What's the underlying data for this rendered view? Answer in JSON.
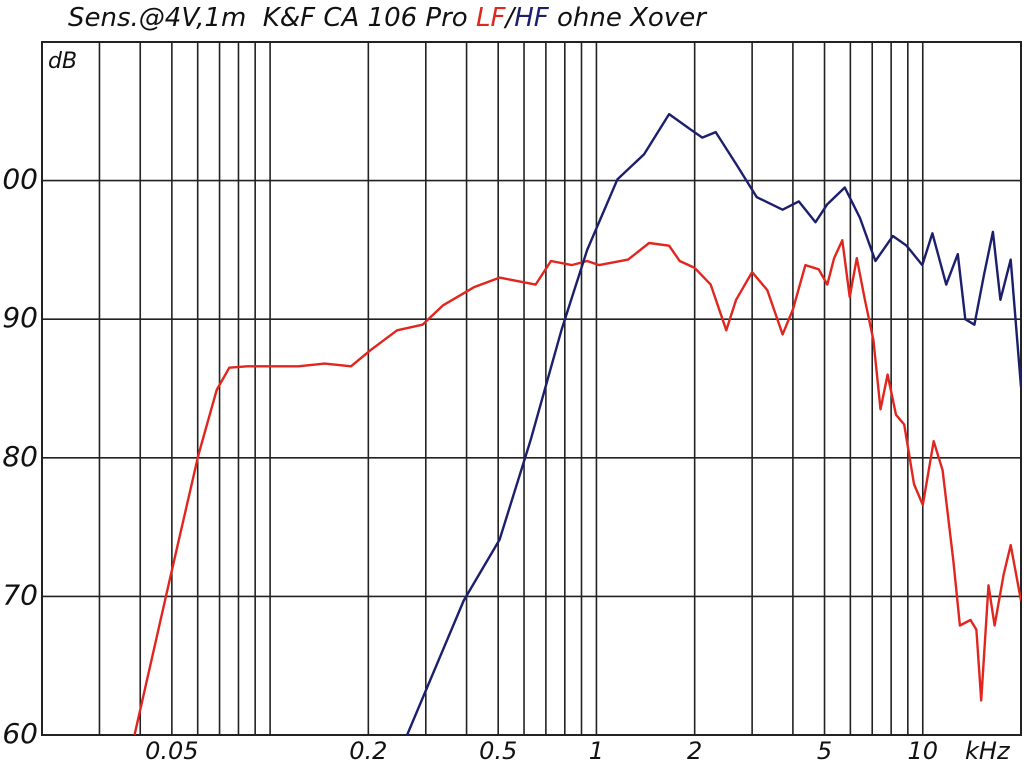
{
  "chart_data": {
    "type": "line",
    "title": "Sens.@4V,1m  K&F CA 106 Pro",
    "title_separator": "/",
    "title_suffix": "ohne Xover",
    "y_label": "dB",
    "x_unit": "kHz",
    "x_scale": "log",
    "grid": true,
    "xlim": [
      0.02,
      20
    ],
    "ylim": [
      60,
      110
    ],
    "xticks": [
      0.05,
      0.2,
      0.5,
      1,
      2,
      5,
      10
    ],
    "x_minor_grid": [
      0.03,
      0.04,
      0.06,
      0.07,
      0.08,
      0.09,
      0.1,
      0.3,
      0.4,
      0.6,
      0.7,
      0.8,
      0.9,
      3,
      4,
      6,
      7,
      8,
      9,
      20
    ],
    "yticks": [
      60,
      70,
      80,
      90,
      100
    ],
    "series": [
      {
        "name": "LF",
        "color": "#e0261e",
        "x": [
          0.0384,
          0.05,
          0.0603,
          0.0686,
          0.075,
          0.085,
          0.122,
          0.147,
          0.177,
          0.204,
          0.245,
          0.293,
          0.339,
          0.421,
          0.505,
          0.651,
          0.726,
          0.84,
          0.937,
          1.02,
          1.25,
          1.45,
          1.67,
          1.8,
          2.0,
          2.24,
          2.5,
          2.68,
          3.0,
          3.34,
          3.72,
          4.0,
          4.37,
          4.8,
          5.1,
          5.35,
          5.67,
          5.97,
          6.28,
          6.65,
          7.06,
          7.42,
          7.8,
          8.28,
          8.77,
          9.4,
          10,
          10.8,
          11.5,
          12.4,
          13.0,
          14.0,
          14.6,
          15.1,
          15.9,
          16.6,
          17.7,
          18.6,
          20.0
        ],
        "values": [
          60.0,
          71.9,
          80.2,
          84.9,
          86.5,
          86.6,
          86.6,
          86.8,
          86.6,
          87.8,
          89.2,
          89.6,
          91.0,
          92.3,
          93.0,
          92.5,
          94.2,
          93.9,
          94.2,
          93.9,
          94.3,
          95.5,
          95.3,
          94.2,
          93.7,
          92.5,
          89.2,
          91.4,
          93.4,
          92.1,
          88.9,
          90.7,
          93.9,
          93.6,
          92.5,
          94.4,
          95.7,
          91.6,
          94.4,
          91.4,
          88.5,
          83.5,
          86.0,
          83.1,
          82.4,
          78.1,
          76.6,
          81.2,
          79.1,
          72.6,
          67.9,
          68.3,
          67.6,
          62.5,
          70.8,
          67.9,
          71.6,
          73.7,
          69.7
        ]
      },
      {
        "name": "HF",
        "color": "#1c1f6b",
        "x": [
          0.263,
          0.392,
          0.505,
          0.629,
          0.781,
          0.937,
          1.16,
          1.4,
          1.67,
          1.94,
          2.11,
          2.32,
          2.68,
          3.1,
          3.72,
          4.17,
          4.69,
          5.1,
          5.77,
          6.42,
          7.16,
          8.1,
          8.92,
          9.97,
          10.7,
          11.8,
          12.8,
          13.5,
          14.4,
          15.4,
          16.4,
          17.3,
          18.6,
          20.0
        ],
        "values": [
          60.0,
          69.7,
          74.1,
          81.3,
          89.2,
          95.0,
          100.1,
          101.9,
          104.8,
          103.7,
          103.1,
          103.5,
          101.2,
          98.8,
          97.9,
          98.5,
          97.0,
          98.3,
          99.5,
          97.3,
          94.2,
          96.0,
          95.3,
          93.9,
          96.2,
          92.5,
          94.7,
          90.0,
          89.6,
          93.2,
          96.3,
          91.4,
          94.3,
          85.1
        ]
      }
    ]
  }
}
